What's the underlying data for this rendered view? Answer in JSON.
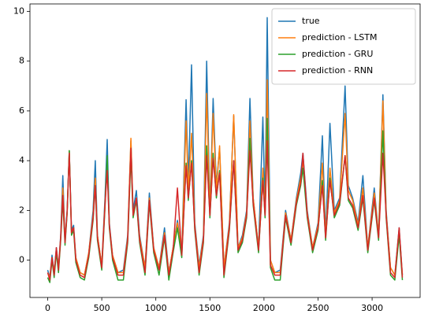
{
  "chart_data": {
    "type": "line",
    "x": [
      0,
      20,
      40,
      60,
      80,
      100,
      120,
      140,
      160,
      180,
      200,
      220,
      240,
      260,
      300,
      340,
      380,
      420,
      440,
      460,
      500,
      530,
      550,
      570,
      600,
      650,
      700,
      740,
      770,
      790,
      820,
      850,
      900,
      940,
      980,
      1030,
      1080,
      1120,
      1160,
      1200,
      1240,
      1280,
      1300,
      1330,
      1360,
      1400,
      1440,
      1470,
      1500,
      1530,
      1560,
      1590,
      1630,
      1680,
      1720,
      1760,
      1800,
      1840,
      1870,
      1900,
      1950,
      1990,
      2010,
      2030,
      2060,
      2100,
      2150,
      2200,
      2250,
      2300,
      2340,
      2360,
      2400,
      2450,
      2500,
      2540,
      2570,
      2610,
      2650,
      2700,
      2750,
      2780,
      2820,
      2870,
      2915,
      2960,
      3020,
      3060,
      3100,
      3130,
      3170,
      3210,
      3250,
      3280
    ],
    "series": [
      {
        "name": "true",
        "color": "#1f77b4",
        "values": [
          -0.4,
          -0.7,
          0.2,
          -0.5,
          0.5,
          -0.3,
          1.0,
          3.4,
          0.8,
          2.0,
          4.4,
          1.2,
          1.4,
          0.1,
          -0.5,
          -0.6,
          0.3,
          2.0,
          4.0,
          1.0,
          -0.2,
          2.5,
          4.85,
          1.5,
          0.2,
          -0.5,
          -0.4,
          1.0,
          4.8,
          2.0,
          2.8,
          1.0,
          -0.3,
          2.7,
          0.5,
          -0.3,
          1.3,
          -0.5,
          0.5,
          1.6,
          0.3,
          6.45,
          3.0,
          7.85,
          1.5,
          -0.2,
          1.0,
          8.0,
          2.0,
          6.5,
          3.0,
          4.5,
          -0.3,
          1.5,
          5.8,
          0.5,
          1.0,
          2.0,
          6.5,
          2.5,
          0.5,
          5.75,
          2.0,
          9.75,
          0.0,
          -0.5,
          -0.4,
          2.0,
          0.8,
          2.5,
          3.5,
          4.3,
          2.0,
          0.5,
          1.5,
          5.0,
          1.0,
          5.5,
          2.0,
          2.5,
          7.0,
          3.0,
          2.5,
          1.5,
          3.4,
          0.5,
          2.9,
          1.0,
          6.65,
          2.0,
          -0.3,
          -0.6,
          1.3,
          -0.6
        ]
      },
      {
        "name": "prediction - LSTM",
        "color": "#ff7f0e",
        "values": [
          -0.5,
          -0.7,
          0.1,
          -0.5,
          0.4,
          -0.3,
          0.9,
          2.9,
          0.8,
          1.9,
          4.4,
          1.1,
          1.3,
          0.1,
          -0.5,
          -0.6,
          0.3,
          1.8,
          3.3,
          1.0,
          -0.2,
          2.3,
          4.0,
          1.4,
          0.2,
          -0.5,
          -0.5,
          0.9,
          4.9,
          1.8,
          2.5,
          0.9,
          -0.3,
          2.5,
          0.5,
          -0.3,
          1.1,
          -0.5,
          0.5,
          1.5,
          0.3,
          5.6,
          2.8,
          5.1,
          1.4,
          -0.3,
          0.9,
          6.7,
          1.9,
          5.9,
          2.8,
          4.6,
          -0.3,
          1.4,
          5.85,
          0.5,
          0.9,
          1.9,
          5.6,
          2.5,
          0.5,
          3.7,
          1.9,
          7.25,
          0.0,
          -0.5,
          -0.5,
          1.9,
          0.8,
          2.4,
          3.3,
          4.0,
          1.9,
          0.5,
          1.4,
          3.9,
          1.0,
          3.7,
          1.9,
          2.4,
          5.9,
          2.8,
          2.4,
          1.4,
          2.9,
          0.5,
          2.7,
          1.0,
          6.4,
          1.9,
          -0.3,
          -0.6,
          1.2,
          -0.6
        ]
      },
      {
        "name": "prediction - GRU",
        "color": "#2ca02c",
        "values": [
          -0.7,
          -0.9,
          0.0,
          -0.7,
          0.3,
          -0.5,
          0.8,
          2.4,
          0.6,
          1.9,
          4.4,
          1.0,
          1.2,
          -0.1,
          -0.7,
          -0.8,
          0.1,
          1.6,
          3.0,
          0.8,
          -0.4,
          2.1,
          4.2,
          1.3,
          0.0,
          -0.8,
          -0.8,
          0.7,
          4.2,
          1.7,
          2.4,
          0.7,
          -0.6,
          2.3,
          0.3,
          -0.6,
          0.9,
          -0.8,
          0.3,
          1.3,
          0.1,
          3.9,
          2.4,
          4.0,
          1.2,
          -0.6,
          0.7,
          4.6,
          1.7,
          4.3,
          2.5,
          3.6,
          -0.7,
          1.2,
          4.0,
          0.3,
          0.7,
          1.7,
          4.9,
          2.2,
          0.3,
          3.3,
          1.7,
          5.7,
          -0.3,
          -0.8,
          -0.8,
          1.7,
          0.6,
          2.2,
          3.0,
          3.7,
          1.7,
          0.3,
          1.2,
          3.2,
          0.8,
          3.3,
          1.7,
          2.2,
          4.2,
          2.4,
          2.1,
          1.2,
          2.5,
          0.3,
          2.4,
          0.8,
          5.2,
          1.7,
          -0.6,
          -0.8,
          1.0,
          -0.8
        ]
      },
      {
        "name": "prediction - RNN",
        "color": "#d62728",
        "values": [
          -0.5,
          -0.8,
          0.1,
          -0.6,
          0.5,
          -0.4,
          0.9,
          2.6,
          0.7,
          2.0,
          4.3,
          1.1,
          1.3,
          0.0,
          -0.6,
          -0.7,
          0.2,
          1.7,
          3.0,
          0.9,
          -0.3,
          2.2,
          3.6,
          1.4,
          0.1,
          -0.6,
          -0.6,
          0.8,
          4.5,
          1.8,
          2.5,
          0.8,
          -0.5,
          2.4,
          0.4,
          -0.4,
          1.0,
          -0.6,
          0.4,
          2.9,
          0.2,
          3.8,
          2.5,
          3.9,
          1.3,
          -0.5,
          0.8,
          4.2,
          1.8,
          4.1,
          2.6,
          3.5,
          -0.6,
          1.3,
          4.0,
          0.4,
          0.8,
          1.8,
          4.4,
          2.3,
          0.4,
          3.2,
          1.8,
          4.8,
          -0.2,
          -0.6,
          -0.6,
          1.8,
          0.7,
          2.3,
          3.1,
          4.3,
          1.8,
          0.4,
          1.3,
          3.0,
          0.9,
          3.2,
          1.8,
          2.3,
          4.2,
          2.5,
          2.2,
          1.3,
          2.6,
          0.4,
          2.5,
          0.9,
          4.3,
          1.8,
          -0.5,
          -0.7,
          1.3,
          -0.7
        ]
      }
    ],
    "xlim": [
      -164,
      3444
    ],
    "xticks": [
      0,
      500,
      1000,
      1500,
      2000,
      2500,
      3000
    ],
    "ylim": [
      -1.5,
      10.3
    ],
    "yticks": [
      0,
      2,
      4,
      6,
      8,
      10
    ],
    "legend": "upper right"
  }
}
